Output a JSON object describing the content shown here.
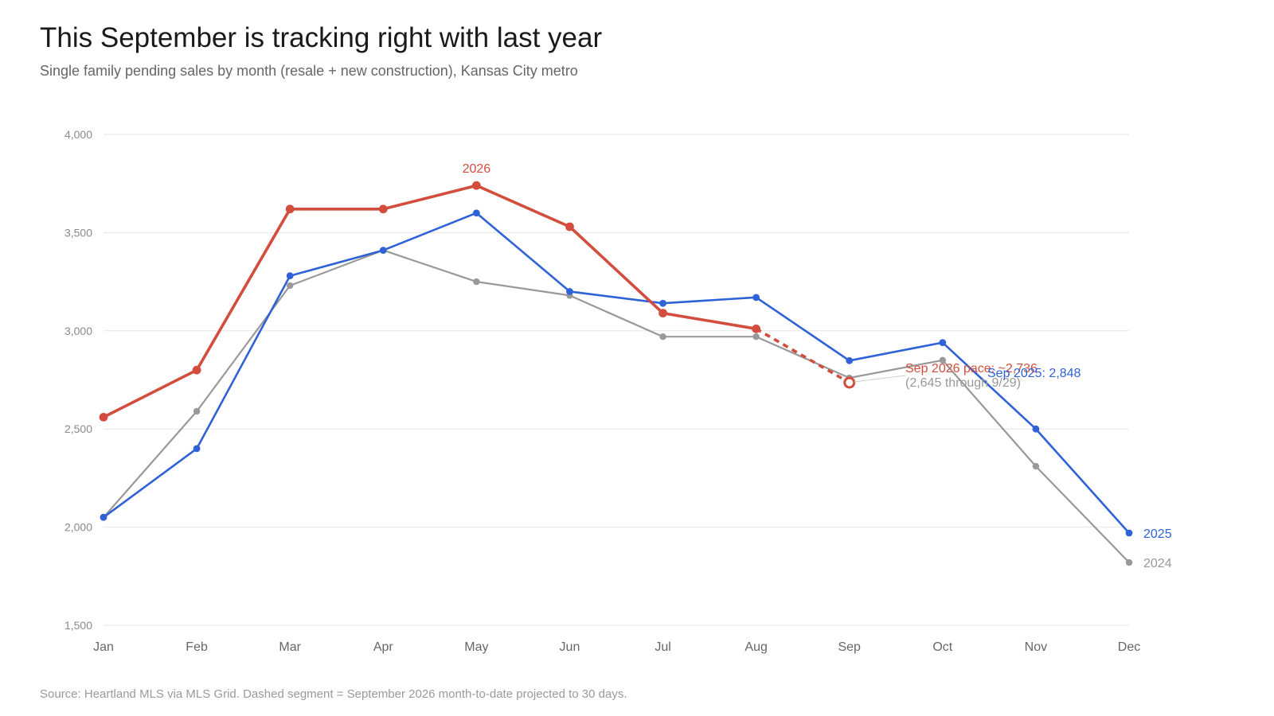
{
  "header": {
    "title": "This September is tracking right with last year",
    "subtitle": "Single family pending sales by month (resale + new construction), Kansas City metro"
  },
  "footer": {
    "source": "Source: Heartland MLS via MLS Grid. Dashed segment = September 2026 month-to-date projected to 30 days."
  },
  "chart_data": {
    "type": "line",
    "title": "This September is tracking right with last year",
    "subtitle": "Single family pending sales by month (resale + new construction), Kansas City metro",
    "xlabel": "",
    "ylabel": "",
    "categories": [
      "Jan",
      "Feb",
      "Mar",
      "Apr",
      "May",
      "Jun",
      "Jul",
      "Aug",
      "Sep",
      "Oct",
      "Nov",
      "Dec"
    ],
    "ylim": [
      1500,
      4000
    ],
    "yticks": [
      1500,
      2000,
      2500,
      3000,
      3500,
      4000
    ],
    "ytick_labels": [
      "1,500",
      "2,000",
      "2,500",
      "3,000",
      "3,500",
      "4,000"
    ],
    "grid": "horizontal",
    "series": [
      {
        "name": "2024",
        "color": "#999999",
        "values": [
          2050,
          2590,
          3230,
          3410,
          3250,
          3180,
          2970,
          2970,
          2760,
          2850,
          2310,
          1820
        ]
      },
      {
        "name": "2025",
        "color": "#2f62d6",
        "values": [
          2050,
          2400,
          3280,
          3410,
          3600,
          3200,
          3140,
          3170,
          2848,
          2940,
          2500,
          1970
        ]
      },
      {
        "name": "2026",
        "color": "#d24d3e",
        "values": [
          2560,
          2800,
          3620,
          3620,
          3740,
          3530,
          3090,
          3010,
          null,
          null,
          null,
          null
        ],
        "projection": {
          "from": "Aug",
          "to": "Sep",
          "value": 2736
        }
      }
    ],
    "annotations": [
      {
        "text": "Sep 2026 pace: ~2,736",
        "color": "#d24d3e"
      },
      {
        "text": "(2,645 through 9/29)",
        "color": "#999999"
      },
      {
        "text": "Sep 2025: 2,848",
        "color": "#2f62d6"
      }
    ]
  }
}
